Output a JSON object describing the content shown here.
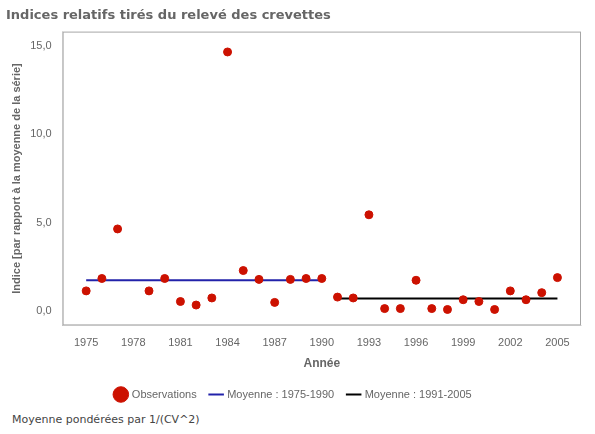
{
  "chart_data": {
    "type": "scatter",
    "title": "Indices relatifs tirés du relevé des crevettes",
    "x_label": "Année",
    "y_label": "Indice [par rapport à la moyenne de la série]",
    "annotations": [
      "Moyenne pondérées par 1/(CV^2)"
    ],
    "series": [
      {
        "name": "Observations",
        "type": "scatter",
        "marker": "circle",
        "color": "#cc1100",
        "x": [
          1975,
          1976,
          1977,
          1979,
          1980,
          1981,
          1982,
          1983,
          1984,
          1985,
          1986,
          1987,
          1988,
          1989,
          1990,
          1991,
          1992,
          1993,
          1994,
          1995,
          1996,
          1997,
          1998,
          1999,
          2000,
          2001,
          2002,
          2003,
          2004,
          2005
        ],
        "values": [
          1.15,
          1.85,
          4.65,
          1.15,
          1.85,
          0.55,
          0.35,
          0.75,
          14.65,
          2.3,
          1.8,
          0.5,
          1.8,
          1.85,
          1.85,
          0.8,
          0.75,
          5.45,
          0.15,
          0.15,
          1.75,
          0.15,
          0.1,
          0.65,
          0.55,
          0.1,
          1.15,
          0.65,
          1.05,
          1.9
        ]
      },
      {
        "name": "Moyenne : 1975-1990",
        "type": "line",
        "line_style": "solid",
        "color": "#2222aa",
        "x": [
          1975,
          1990
        ],
        "values": [
          1.75,
          1.75
        ]
      },
      {
        "name": "Moyenne : 1991-2005",
        "type": "line",
        "line_style": "solid",
        "color": "#000000",
        "x": [
          1991,
          2005
        ],
        "values": [
          0.72,
          0.72
        ]
      }
    ],
    "xlim": [
      1973.5,
      2006.5
    ],
    "xticks": [
      1975,
      1978,
      1981,
      1984,
      1987,
      1990,
      1993,
      1996,
      1999,
      2002,
      2005
    ],
    "ylim": [
      -0.8,
      15.8
    ],
    "yticks": [
      {
        "value": 0.0,
        "label": "0,0"
      },
      {
        "value": 5.0,
        "label": "5,0"
      },
      {
        "value": 10.0,
        "label": "10,0"
      },
      {
        "value": 15.0,
        "label": "15,0"
      }
    ],
    "grid": false,
    "legend": "bottom"
  }
}
